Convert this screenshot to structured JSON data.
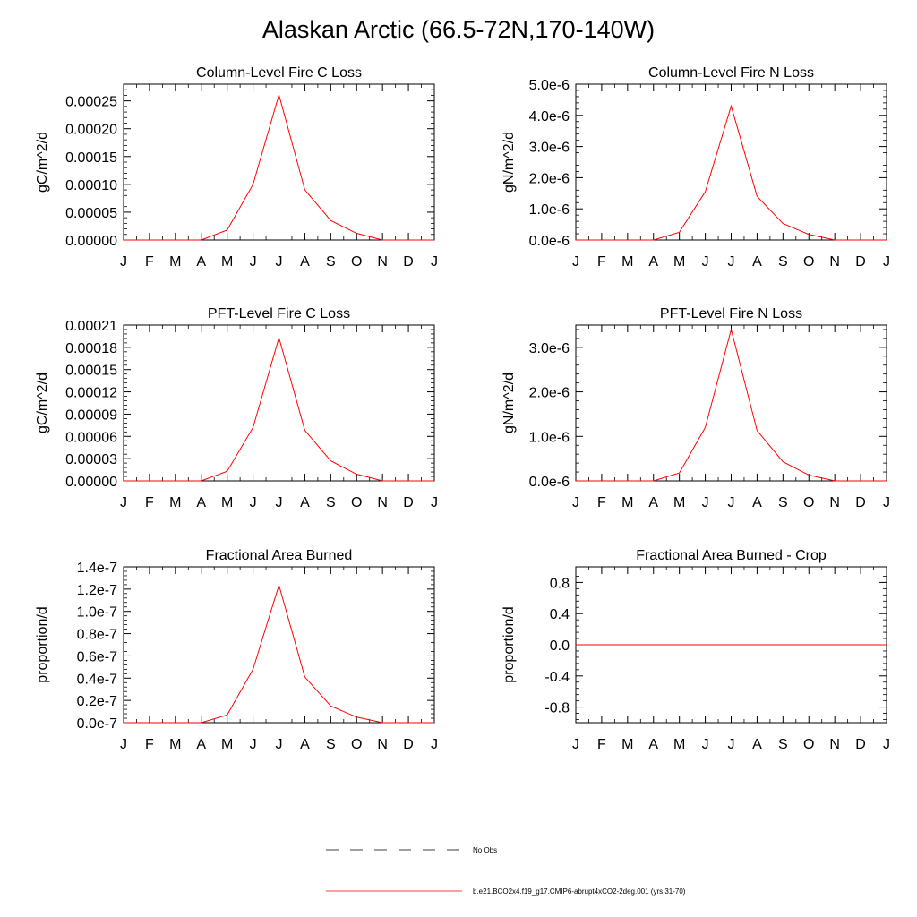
{
  "title": "Alaskan Arctic (66.5-72N,170-140W)",
  "colors": {
    "series": "#ff0000",
    "axis": "#000000",
    "no_obs": "#000000"
  },
  "legend": {
    "no_obs_label": "No Obs",
    "series_label": "b.e21.BCO2x4.f19_g17.CMIP6-abrupt4xCO2-2deg.001 (yrs 31-70)"
  },
  "chart_data": [
    {
      "type": "line",
      "title": "Column-Level Fire C Loss",
      "ylabel": "gC/m^2/d",
      "categories": [
        "J",
        "F",
        "M",
        "A",
        "M",
        "J",
        "J",
        "A",
        "S",
        "O",
        "N",
        "D",
        "J"
      ],
      "ylim": [
        0,
        0.00028
      ],
      "yticks": [
        0,
        5e-05,
        0.0001,
        0.00015,
        0.0002,
        0.00025
      ],
      "ytick_labels": [
        "0.00000",
        "0.00005",
        "0.00010",
        "0.00015",
        "0.00020",
        "0.00025"
      ],
      "values": [
        0,
        0,
        0,
        0,
        1.8e-05,
        0.0001,
        0.000261,
        9e-05,
        3.5e-05,
        1.2e-05,
        0,
        0,
        0
      ]
    },
    {
      "type": "line",
      "title": "Column-Level Fire N Loss",
      "ylabel": "gN/m^2/d",
      "categories": [
        "J",
        "F",
        "M",
        "A",
        "M",
        "J",
        "J",
        "A",
        "S",
        "O",
        "N",
        "D",
        "J"
      ],
      "ylim": [
        0,
        5e-06
      ],
      "yticks": [
        0,
        1e-06,
        2e-06,
        3e-06,
        4e-06,
        5e-06
      ],
      "ytick_labels": [
        "0.0e-6",
        "1.0e-6",
        "2.0e-6",
        "3.0e-6",
        "4.0e-6",
        "5.0e-6"
      ],
      "values": [
        0,
        0,
        0,
        0,
        2.5e-07,
        1.55e-06,
        4.3e-06,
        1.4e-06,
        5.3e-07,
        1.8e-07,
        0,
        0,
        0
      ]
    },
    {
      "type": "line",
      "title": "PFT-Level Fire C Loss",
      "ylabel": "gC/m^2/d",
      "categories": [
        "J",
        "F",
        "M",
        "A",
        "M",
        "J",
        "J",
        "A",
        "S",
        "O",
        "N",
        "D",
        "J"
      ],
      "ylim": [
        0,
        0.00021
      ],
      "yticks": [
        0,
        3e-05,
        6e-05,
        9e-05,
        0.00012,
        0.00015,
        0.00018,
        0.00021
      ],
      "ytick_labels": [
        "0.00000",
        "0.00003",
        "0.00006",
        "0.00009",
        "0.00012",
        "0.00015",
        "0.00018",
        "0.00021"
      ],
      "values": [
        0,
        0,
        0,
        0,
        1.3e-05,
        7.2e-05,
        0.000193,
        6.8e-05,
        2.7e-05,
        9e-06,
        0,
        0,
        0
      ]
    },
    {
      "type": "line",
      "title": "PFT-Level Fire N Loss",
      "ylabel": "gN/m^2/d",
      "categories": [
        "J",
        "F",
        "M",
        "A",
        "M",
        "J",
        "J",
        "A",
        "S",
        "O",
        "N",
        "D",
        "J"
      ],
      "ylim": [
        0,
        3.5e-06
      ],
      "yticks": [
        0,
        1e-06,
        2e-06,
        3e-06
      ],
      "ytick_labels": [
        "0.0e-6",
        "1.0e-6",
        "2.0e-6",
        "3.0e-6"
      ],
      "values": [
        0,
        0,
        0,
        0,
        1.8e-07,
        1.2e-06,
        3.4e-06,
        1.13e-06,
        4.3e-07,
        1.3e-07,
        0,
        0,
        0
      ]
    },
    {
      "type": "line",
      "title": "Fractional Area Burned",
      "ylabel": "proportion/d",
      "categories": [
        "J",
        "F",
        "M",
        "A",
        "M",
        "J",
        "J",
        "A",
        "S",
        "O",
        "N",
        "D",
        "J"
      ],
      "ylim": [
        0,
        1.4e-07
      ],
      "yticks": [
        0,
        2e-08,
        4e-08,
        6e-08,
        8e-08,
        1e-07,
        1.2e-07,
        1.4e-07
      ],
      "ytick_labels": [
        "0.0e-7",
        "0.2e-7",
        "0.4e-7",
        "0.6e-7",
        "0.8e-7",
        "1.0e-7",
        "1.2e-7",
        "1.4e-7"
      ],
      "values": [
        0,
        0,
        0,
        0,
        7e-09,
        4.8e-08,
        1.235e-07,
        4.1e-08,
        1.5e-08,
        5e-09,
        0,
        0,
        0
      ]
    },
    {
      "type": "line",
      "title": "Fractional Area Burned - Crop",
      "ylabel": "proportion/d",
      "categories": [
        "J",
        "F",
        "M",
        "A",
        "M",
        "J",
        "J",
        "A",
        "S",
        "O",
        "N",
        "D",
        "J"
      ],
      "ylim": [
        -1.0,
        1.0
      ],
      "yticks": [
        -0.8,
        -0.4,
        0.0,
        0.4,
        0.8
      ],
      "ytick_labels": [
        "-0.8",
        "-0.4",
        "0.0",
        "0.4",
        "0.8"
      ],
      "values": [
        0,
        0,
        0,
        0,
        0,
        0,
        0,
        0,
        0,
        0,
        0,
        0,
        0
      ]
    }
  ]
}
